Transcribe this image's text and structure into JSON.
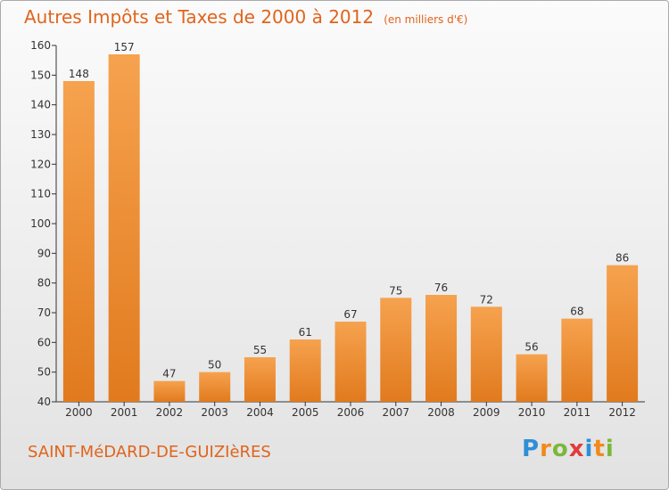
{
  "title": "Autres Impôts et Taxes de 2000 à 2012",
  "title_unit": "(en milliers d'€)",
  "commune": "SAINT-MéDARD-DE-GUIZIèRES",
  "brand": {
    "letters": [
      "P",
      "r",
      "o",
      "x",
      "i",
      "t",
      "i"
    ],
    "colors": [
      "#2f8fd6",
      "#f08a1c",
      "#7ab83a",
      "#e23c3c",
      "#2f8fd6",
      "#f08a1c",
      "#7ab83a"
    ]
  },
  "colors": {
    "bar_light": "#f6a24e",
    "bar_dark": "#e17a1e",
    "accent": "#e0641c"
  },
  "chart_data": {
    "type": "bar",
    "categories": [
      "2000",
      "2001",
      "2002",
      "2003",
      "2004",
      "2005",
      "2006",
      "2007",
      "2008",
      "2009",
      "2010",
      "2011",
      "2012"
    ],
    "values": [
      148,
      157,
      47,
      50,
      55,
      61,
      67,
      75,
      76,
      72,
      56,
      68,
      86
    ],
    "ylim": [
      40,
      160
    ],
    "yticks": [
      40,
      50,
      60,
      70,
      80,
      90,
      100,
      110,
      120,
      130,
      140,
      150,
      160
    ],
    "grid": false,
    "legend": "none"
  }
}
